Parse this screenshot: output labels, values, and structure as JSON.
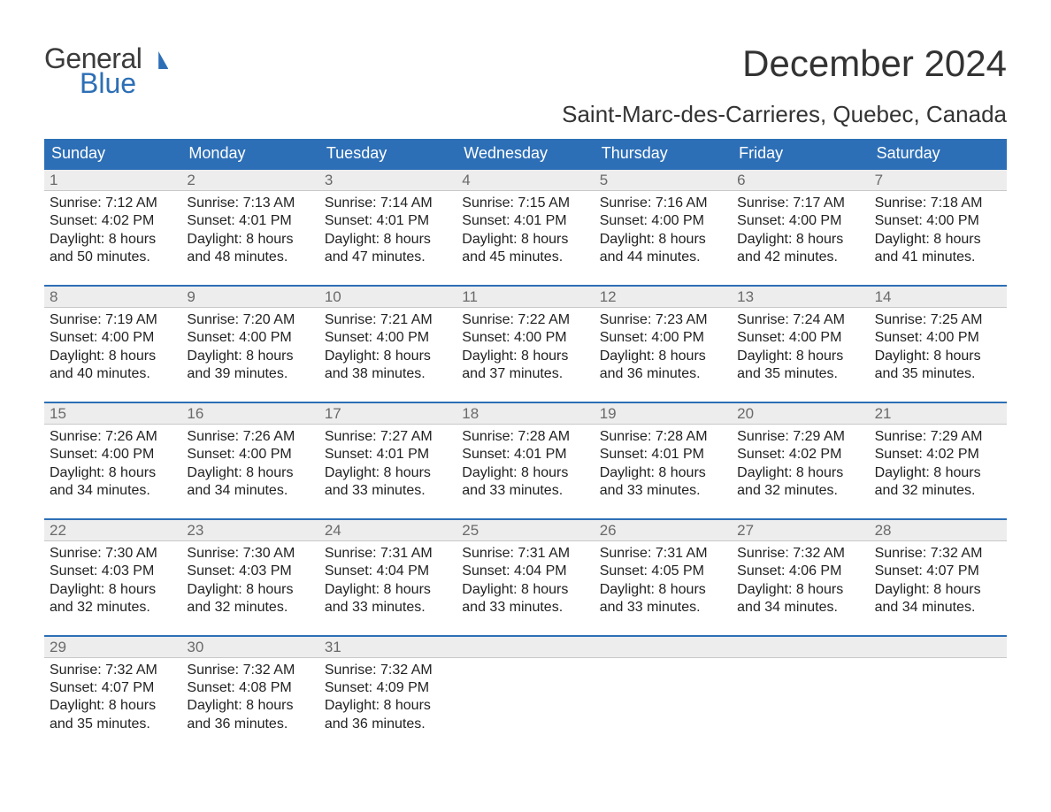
{
  "logo": {
    "line1": "General",
    "line2": "Blue"
  },
  "header": {
    "month_title": "December 2024",
    "location": "Saint-Marc-des-Carrieres, Quebec, Canada"
  },
  "colors": {
    "header_bg": "#2d6fb6",
    "daynum_bg": "#ededed",
    "text": "#222222",
    "muted": "#6a6a6a"
  },
  "calendar": {
    "days_of_week": [
      "Sunday",
      "Monday",
      "Tuesday",
      "Wednesday",
      "Thursday",
      "Friday",
      "Saturday"
    ],
    "weeks": [
      [
        {
          "n": "1",
          "sr": "7:12 AM",
          "ss": "4:02 PM",
          "dl": "8 hours and 50 minutes."
        },
        {
          "n": "2",
          "sr": "7:13 AM",
          "ss": "4:01 PM",
          "dl": "8 hours and 48 minutes."
        },
        {
          "n": "3",
          "sr": "7:14 AM",
          "ss": "4:01 PM",
          "dl": "8 hours and 47 minutes."
        },
        {
          "n": "4",
          "sr": "7:15 AM",
          "ss": "4:01 PM",
          "dl": "8 hours and 45 minutes."
        },
        {
          "n": "5",
          "sr": "7:16 AM",
          "ss": "4:00 PM",
          "dl": "8 hours and 44 minutes."
        },
        {
          "n": "6",
          "sr": "7:17 AM",
          "ss": "4:00 PM",
          "dl": "8 hours and 42 minutes."
        },
        {
          "n": "7",
          "sr": "7:18 AM",
          "ss": "4:00 PM",
          "dl": "8 hours and 41 minutes."
        }
      ],
      [
        {
          "n": "8",
          "sr": "7:19 AM",
          "ss": "4:00 PM",
          "dl": "8 hours and 40 minutes."
        },
        {
          "n": "9",
          "sr": "7:20 AM",
          "ss": "4:00 PM",
          "dl": "8 hours and 39 minutes."
        },
        {
          "n": "10",
          "sr": "7:21 AM",
          "ss": "4:00 PM",
          "dl": "8 hours and 38 minutes."
        },
        {
          "n": "11",
          "sr": "7:22 AM",
          "ss": "4:00 PM",
          "dl": "8 hours and 37 minutes."
        },
        {
          "n": "12",
          "sr": "7:23 AM",
          "ss": "4:00 PM",
          "dl": "8 hours and 36 minutes."
        },
        {
          "n": "13",
          "sr": "7:24 AM",
          "ss": "4:00 PM",
          "dl": "8 hours and 35 minutes."
        },
        {
          "n": "14",
          "sr": "7:25 AM",
          "ss": "4:00 PM",
          "dl": "8 hours and 35 minutes."
        }
      ],
      [
        {
          "n": "15",
          "sr": "7:26 AM",
          "ss": "4:00 PM",
          "dl": "8 hours and 34 minutes."
        },
        {
          "n": "16",
          "sr": "7:26 AM",
          "ss": "4:00 PM",
          "dl": "8 hours and 34 minutes."
        },
        {
          "n": "17",
          "sr": "7:27 AM",
          "ss": "4:01 PM",
          "dl": "8 hours and 33 minutes."
        },
        {
          "n": "18",
          "sr": "7:28 AM",
          "ss": "4:01 PM",
          "dl": "8 hours and 33 minutes."
        },
        {
          "n": "19",
          "sr": "7:28 AM",
          "ss": "4:01 PM",
          "dl": "8 hours and 33 minutes."
        },
        {
          "n": "20",
          "sr": "7:29 AM",
          "ss": "4:02 PM",
          "dl": "8 hours and 32 minutes."
        },
        {
          "n": "21",
          "sr": "7:29 AM",
          "ss": "4:02 PM",
          "dl": "8 hours and 32 minutes."
        }
      ],
      [
        {
          "n": "22",
          "sr": "7:30 AM",
          "ss": "4:03 PM",
          "dl": "8 hours and 32 minutes."
        },
        {
          "n": "23",
          "sr": "7:30 AM",
          "ss": "4:03 PM",
          "dl": "8 hours and 32 minutes."
        },
        {
          "n": "24",
          "sr": "7:31 AM",
          "ss": "4:04 PM",
          "dl": "8 hours and 33 minutes."
        },
        {
          "n": "25",
          "sr": "7:31 AM",
          "ss": "4:04 PM",
          "dl": "8 hours and 33 minutes."
        },
        {
          "n": "26",
          "sr": "7:31 AM",
          "ss": "4:05 PM",
          "dl": "8 hours and 33 minutes."
        },
        {
          "n": "27",
          "sr": "7:32 AM",
          "ss": "4:06 PM",
          "dl": "8 hours and 34 minutes."
        },
        {
          "n": "28",
          "sr": "7:32 AM",
          "ss": "4:07 PM",
          "dl": "8 hours and 34 minutes."
        }
      ],
      [
        {
          "n": "29",
          "sr": "7:32 AM",
          "ss": "4:07 PM",
          "dl": "8 hours and 35 minutes."
        },
        {
          "n": "30",
          "sr": "7:32 AM",
          "ss": "4:08 PM",
          "dl": "8 hours and 36 minutes."
        },
        {
          "n": "31",
          "sr": "7:32 AM",
          "ss": "4:09 PM",
          "dl": "8 hours and 36 minutes."
        },
        null,
        null,
        null,
        null
      ]
    ],
    "labels": {
      "sunrise": "Sunrise: ",
      "sunset": "Sunset: ",
      "daylight": "Daylight: "
    }
  }
}
